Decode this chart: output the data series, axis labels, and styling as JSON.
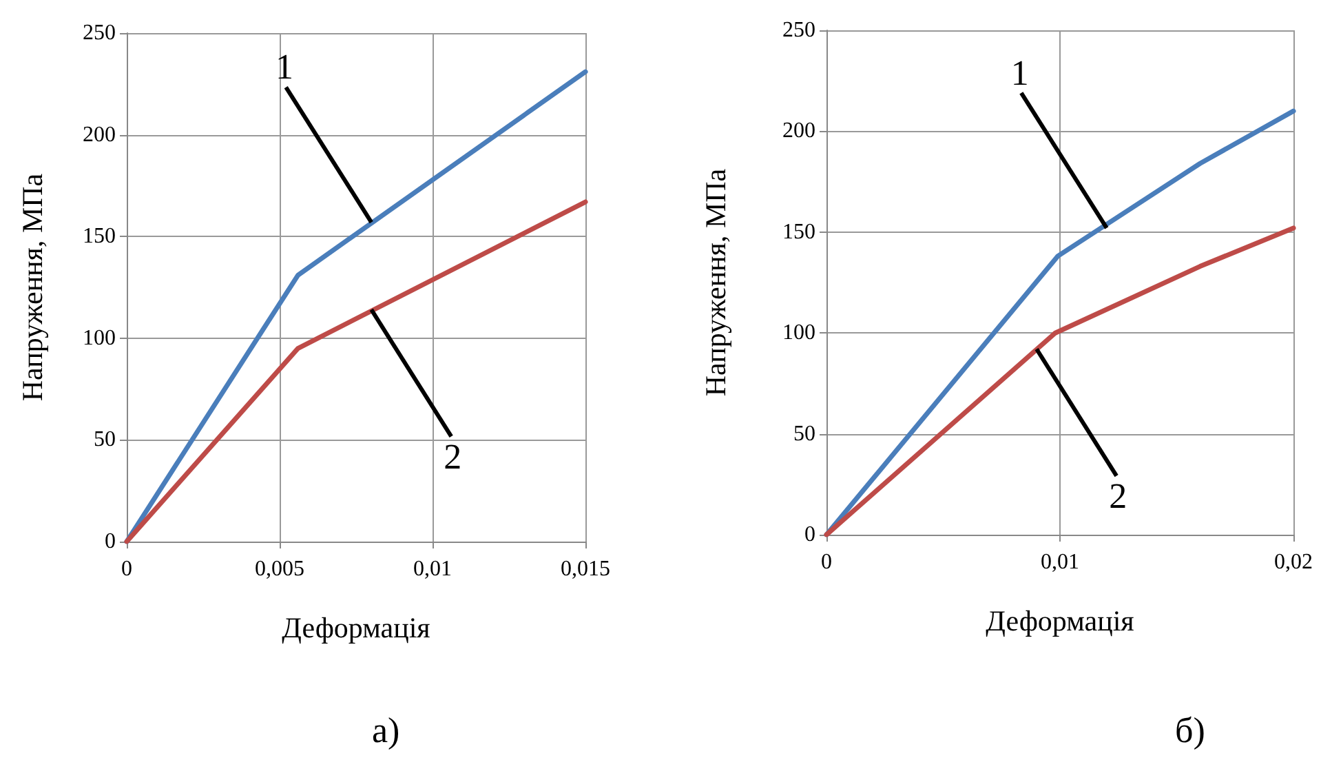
{
  "chart_data": [
    {
      "type": "line",
      "xlabel": "Деформація",
      "ylabel": "Напруження, МПа",
      "xlim": [
        0,
        0.015
      ],
      "xticks": [
        0,
        {
          "value": 0.005,
          "label": "0,005"
        },
        {
          "value": 0.01,
          "label": "0,01"
        },
        {
          "value": 0.015,
          "label": "0,015"
        }
      ],
      "ylim": [
        0,
        250
      ],
      "yticks": [
        0,
        50,
        100,
        150,
        200,
        250
      ],
      "grid": true,
      "marker": "none",
      "line_style": "solid",
      "series": [
        {
          "color": "#4a7ebb",
          "x": [
            0,
            0.0056,
            0.015
          ],
          "values": [
            0,
            131,
            231
          ]
        },
        {
          "color": "#be4b48",
          "x": [
            0,
            0.0056,
            0.015
          ],
          "values": [
            0,
            95,
            167
          ]
        }
      ],
      "annotations": [
        {
          "text": "1",
          "x": 0.008,
          "y": 157
        },
        {
          "text": "2",
          "x": 0.008,
          "y": 114
        },
        "а)"
      ]
    },
    {
      "type": "line",
      "xlabel": "Деформація",
      "ylabel": "Напруження, МПа",
      "xlim": [
        0,
        0.02
      ],
      "xticks": [
        0,
        {
          "value": 0.01,
          "label": "0,01"
        },
        {
          "value": 0.02,
          "label": "0,02"
        }
      ],
      "ylim": [
        0,
        250
      ],
      "yticks": [
        0,
        50,
        100,
        150,
        200,
        250
      ],
      "grid": true,
      "marker": "none",
      "line_style": "solid",
      "series": [
        {
          "color": "#4a7ebb",
          "x": [
            0,
            0.0099,
            0.016,
            0.02
          ],
          "values": [
            0,
            138,
            184,
            210
          ]
        },
        {
          "color": "#be4b48",
          "x": [
            0,
            0.0098,
            0.016,
            0.02
          ],
          "values": [
            0,
            100,
            133,
            152
          ]
        }
      ],
      "annotations": [
        {
          "text": "1",
          "x": 0.012,
          "y": 152
        },
        {
          "text": "2",
          "x": 0.009,
          "y": 92
        },
        "б)"
      ]
    }
  ]
}
